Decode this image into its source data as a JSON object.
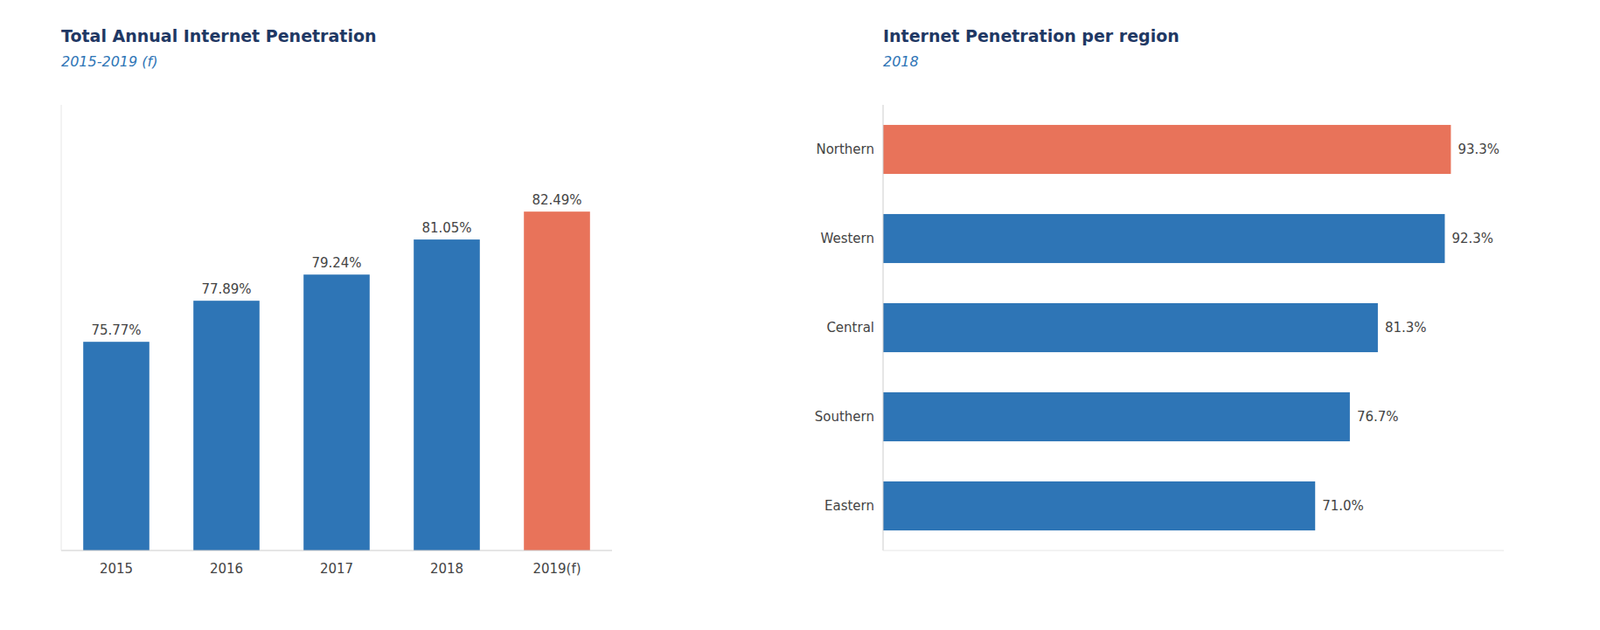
{
  "chart_data": [
    {
      "type": "bar",
      "title": "Total Annual Internet Penetration",
      "subtitle": "2015-2019 (f)",
      "categories": [
        "2015",
        "2016",
        "2017",
        "2018",
        "2019(f)"
      ],
      "values": [
        75.77,
        77.89,
        79.24,
        81.05,
        82.49
      ],
      "value_labels": [
        "75.77%",
        "77.89%",
        "79.24%",
        "81.05%",
        "82.49%"
      ],
      "colors": [
        "#2e75b6",
        "#2e75b6",
        "#2e75b6",
        "#2e75b6",
        "#e8735a"
      ],
      "ylim": [
        65,
        88
      ],
      "data_labels": true,
      "tick_labels": "x",
      "grid": false
    },
    {
      "type": "bar",
      "orientation": "horizontal",
      "title": "Internet Penetration per region",
      "subtitle": "2018",
      "categories": [
        "Northern",
        "Western",
        "Central",
        "Southern",
        "Eastern"
      ],
      "values": [
        93.3,
        92.3,
        81.3,
        76.7,
        71.0
      ],
      "value_labels": [
        "93.3%",
        "92.3%",
        "81.3%",
        "76.7%",
        "71.0%"
      ],
      "colors": [
        "#e8735a",
        "#2e75b6",
        "#2e75b6",
        "#2e75b6",
        "#2e75b6"
      ],
      "xlim": [
        0,
        102
      ],
      "data_labels": true,
      "tick_labels": "y",
      "grid": false
    }
  ]
}
